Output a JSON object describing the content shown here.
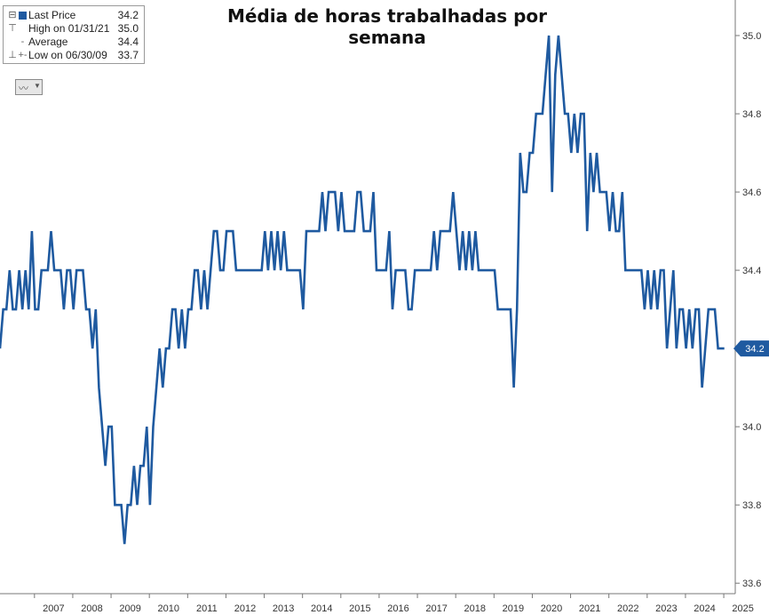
{
  "chart_data": {
    "type": "line",
    "title": "Média de horas trabalhadas por semana",
    "xlabel": "",
    "ylabel": "",
    "x_ticks": [
      "2007",
      "2008",
      "2009",
      "2010",
      "2011",
      "2012",
      "2013",
      "2014",
      "2015",
      "2016",
      "2017",
      "2018",
      "2019",
      "2020",
      "2021",
      "2022",
      "2023",
      "2024",
      "2025"
    ],
    "y_ticks": [
      "33.6",
      "33.8",
      "34.0",
      "34.2",
      "34.4",
      "34.6",
      "34.8",
      "35.0"
    ],
    "x_range": [
      2006.1,
      2025.3
    ],
    "ylim": [
      33.58,
      35.05
    ],
    "y_axis_side": "right",
    "grid": false,
    "legend_position": "top-left",
    "series": [
      {
        "name": "Last Price",
        "color": "#1f5aa0",
        "x_start": 2006.1,
        "x_step": 0.08333,
        "values": [
          34.2,
          34.3,
          34.3,
          34.4,
          34.3,
          34.3,
          34.4,
          34.3,
          34.4,
          34.3,
          34.5,
          34.3,
          34.3,
          34.4,
          34.4,
          34.4,
          34.5,
          34.4,
          34.4,
          34.4,
          34.3,
          34.4,
          34.4,
          34.3,
          34.4,
          34.4,
          34.4,
          34.3,
          34.3,
          34.2,
          34.3,
          34.1,
          34.0,
          33.9,
          34.0,
          34.0,
          33.8,
          33.8,
          33.8,
          33.7,
          33.8,
          33.8,
          33.9,
          33.8,
          33.9,
          33.9,
          34.0,
          33.8,
          34.0,
          34.1,
          34.2,
          34.1,
          34.2,
          34.2,
          34.3,
          34.3,
          34.2,
          34.3,
          34.2,
          34.3,
          34.3,
          34.4,
          34.4,
          34.3,
          34.4,
          34.3,
          34.4,
          34.5,
          34.5,
          34.4,
          34.4,
          34.5,
          34.5,
          34.5,
          34.4,
          34.4,
          34.4,
          34.4,
          34.4,
          34.4,
          34.4,
          34.4,
          34.4,
          34.5,
          34.4,
          34.5,
          34.4,
          34.5,
          34.4,
          34.5,
          34.4,
          34.4,
          34.4,
          34.4,
          34.4,
          34.3,
          34.5,
          34.5,
          34.5,
          34.5,
          34.5,
          34.6,
          34.5,
          34.6,
          34.6,
          34.6,
          34.5,
          34.6,
          34.5,
          34.5,
          34.5,
          34.5,
          34.6,
          34.6,
          34.5,
          34.5,
          34.5,
          34.6,
          34.4,
          34.4,
          34.4,
          34.4,
          34.5,
          34.3,
          34.4,
          34.4,
          34.4,
          34.4,
          34.3,
          34.3,
          34.4,
          34.4,
          34.4,
          34.4,
          34.4,
          34.4,
          34.5,
          34.4,
          34.5,
          34.5,
          34.5,
          34.5,
          34.6,
          34.5,
          34.4,
          34.5,
          34.4,
          34.5,
          34.4,
          34.5,
          34.4,
          34.4,
          34.4,
          34.4,
          34.4,
          34.4,
          34.3,
          34.3,
          34.3,
          34.3,
          34.3,
          34.1,
          34.3,
          34.7,
          34.6,
          34.6,
          34.7,
          34.7,
          34.8,
          34.8,
          34.8,
          34.9,
          35.0,
          34.6,
          34.9,
          35.0,
          34.9,
          34.8,
          34.8,
          34.7,
          34.8,
          34.7,
          34.8,
          34.8,
          34.5,
          34.7,
          34.6,
          34.7,
          34.6,
          34.6,
          34.6,
          34.5,
          34.6,
          34.5,
          34.5,
          34.6,
          34.4,
          34.4,
          34.4,
          34.4,
          34.4,
          34.4,
          34.3,
          34.4,
          34.3,
          34.4,
          34.3,
          34.4,
          34.4,
          34.2,
          34.3,
          34.4,
          34.2,
          34.3,
          34.3,
          34.2,
          34.3,
          34.2,
          34.3,
          34.3,
          34.1,
          34.2,
          34.3,
          34.3,
          34.3,
          34.2,
          34.2,
          34.2
        ]
      }
    ],
    "last_value_label": "34.2"
  },
  "legend": {
    "rows": [
      {
        "glyph": "⊟",
        "marker": "swatch",
        "label": "Last Price",
        "value": "34.2"
      },
      {
        "glyph": "⊤",
        "marker": "",
        "label": "High on 01/31/21",
        "value": "35.0"
      },
      {
        "glyph": "",
        "marker": "-+-",
        "label": "Average",
        "value": "34.4"
      },
      {
        "glyph": "⊥",
        "marker": "",
        "label": "Low on 06/30/09",
        "value": "33.7"
      }
    ]
  },
  "toolbar": {
    "chart_type_icon": "line-chart-icon",
    "dropdown_icon": "chevron-down-icon"
  }
}
